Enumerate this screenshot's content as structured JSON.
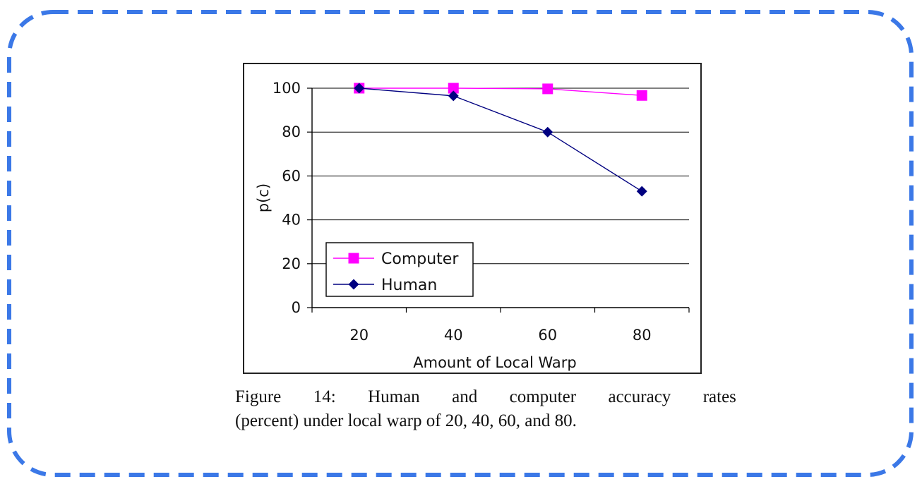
{
  "frame": {
    "border_color": "#3b78e7"
  },
  "chart_data": {
    "type": "line",
    "x": [
      20,
      40,
      60,
      80
    ],
    "xlabel": "Amount of Local Warp",
    "ylabel": "p(c)",
    "ylim": [
      0,
      100
    ],
    "yticks": [
      0,
      20,
      40,
      60,
      80,
      100
    ],
    "grid": true,
    "legend": "bottom-left",
    "series": [
      {
        "name": "Computer",
        "values": [
          100,
          100,
          99.7,
          96.7
        ],
        "color": "#ff00ff",
        "marker": "square"
      },
      {
        "name": "Human",
        "values": [
          100,
          96.5,
          80,
          53
        ],
        "color": "#000080",
        "marker": "diamond"
      }
    ]
  },
  "caption": {
    "line1": [
      "Figure",
      "14:",
      "Human",
      "and",
      "computer",
      "accuracy",
      "rates"
    ],
    "line2": "(percent) under local warp of 20, 40, 60, and 80."
  }
}
